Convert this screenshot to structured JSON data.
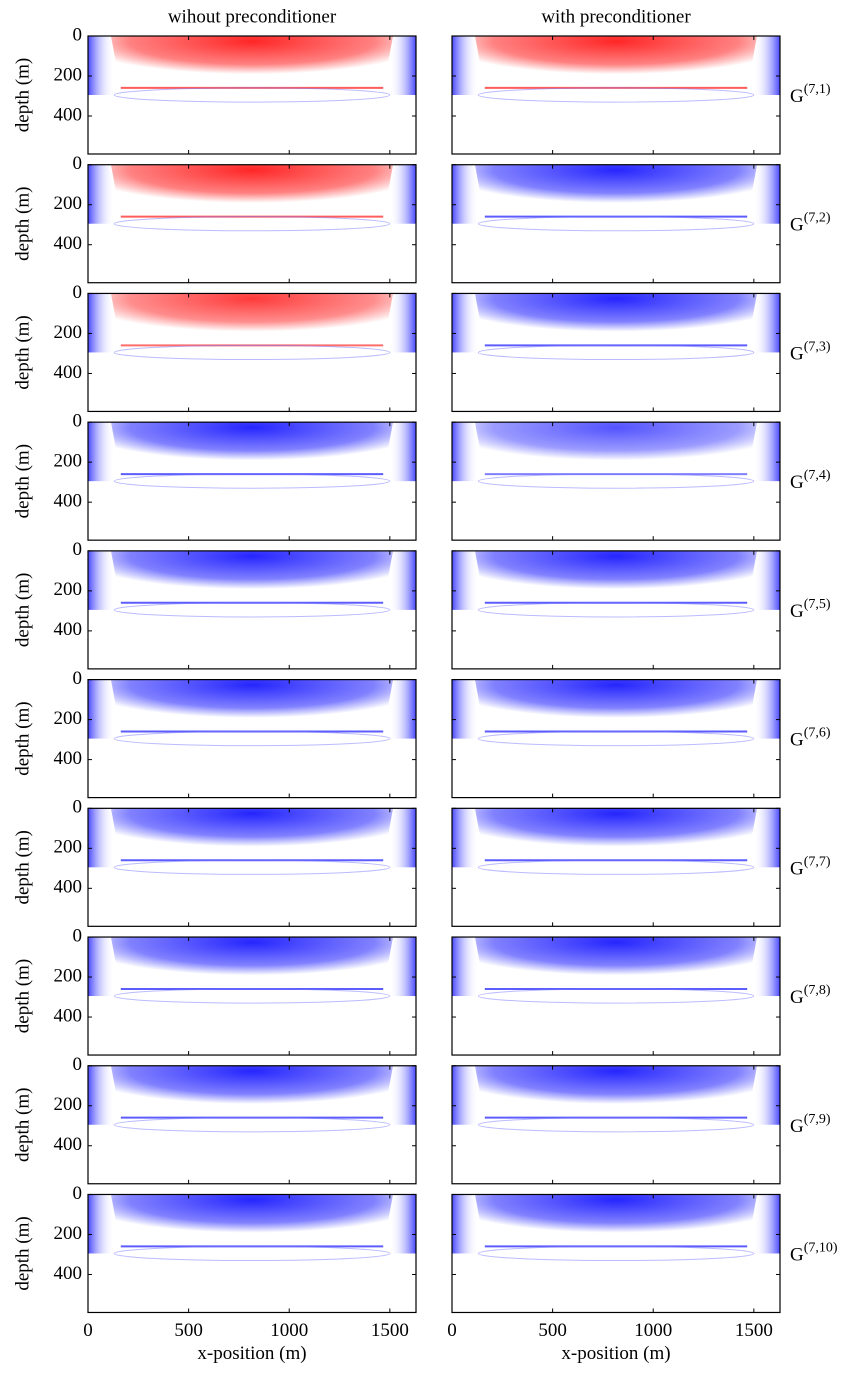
{
  "chart_data": [
    {
      "type": "heatmap",
      "title": "wihout preconditioner",
      "ylabel": "depth (m)",
      "xlim": [
        0,
        1630
      ],
      "ylim": [
        0,
        590
      ],
      "xticks": [
        0,
        500,
        1000,
        1500
      ],
      "yticks": [
        0,
        200,
        400
      ],
      "xtick_labels": false,
      "ytick_labels": true,
      "color": "#ff1a1a"
    },
    {
      "type": "heatmap",
      "title": "with preconditioner",
      "annotation": "G",
      "annotation_superscript": "(7,1)",
      "xlim": [
        0,
        1630
      ],
      "ylim": [
        0,
        590
      ],
      "xticks": [
        0,
        500,
        1000,
        1500
      ],
      "yticks": [
        0,
        200,
        400
      ],
      "xtick_labels": false,
      "ytick_labels": false,
      "color": "#ff1a1a"
    },
    {
      "type": "heatmap",
      "ylabel": "depth (m)",
      "xlim": [
        0,
        1630
      ],
      "ylim": [
        0,
        590
      ],
      "xticks": [
        0,
        500,
        1000,
        1500
      ],
      "yticks": [
        0,
        200,
        400
      ],
      "xtick_labels": false,
      "ytick_labels": true,
      "color": "#ff1a1a"
    },
    {
      "type": "heatmap",
      "annotation": "G",
      "annotation_superscript": "(7,2)",
      "xlim": [
        0,
        1630
      ],
      "ylim": [
        0,
        590
      ],
      "xticks": [
        0,
        500,
        1000,
        1500
      ],
      "yticks": [
        0,
        200,
        400
      ],
      "xtick_labels": false,
      "ytick_labels": false,
      "color": "#1a1aff"
    },
    {
      "type": "heatmap",
      "ylabel": "depth (m)",
      "xlim": [
        0,
        1630
      ],
      "ylim": [
        0,
        590
      ],
      "xticks": [
        0,
        500,
        1000,
        1500
      ],
      "yticks": [
        0,
        200,
        400
      ],
      "xtick_labels": false,
      "ytick_labels": true,
      "color": "#ff3030"
    },
    {
      "type": "heatmap",
      "annotation": "G",
      "annotation_superscript": "(7,3)",
      "xlim": [
        0,
        1630
      ],
      "ylim": [
        0,
        590
      ],
      "xticks": [
        0,
        500,
        1000,
        1500
      ],
      "yticks": [
        0,
        200,
        400
      ],
      "xtick_labels": false,
      "ytick_labels": false,
      "color": "#1a1aff"
    },
    {
      "type": "heatmap",
      "ylabel": "depth (m)",
      "xlim": [
        0,
        1630
      ],
      "ylim": [
        0,
        590
      ],
      "xticks": [
        0,
        500,
        1000,
        1500
      ],
      "yticks": [
        0,
        200,
        400
      ],
      "xtick_labels": false,
      "ytick_labels": true,
      "color": "#1a1aff"
    },
    {
      "type": "heatmap",
      "annotation": "G",
      "annotation_superscript": "(7,4)",
      "xlim": [
        0,
        1630
      ],
      "ylim": [
        0,
        590
      ],
      "xticks": [
        0,
        500,
        1000,
        1500
      ],
      "yticks": [
        0,
        200,
        400
      ],
      "xtick_labels": false,
      "ytick_labels": false,
      "color": "#4a4aff"
    },
    {
      "type": "heatmap",
      "ylabel": "depth (m)",
      "xlim": [
        0,
        1630
      ],
      "ylim": [
        0,
        590
      ],
      "xticks": [
        0,
        500,
        1000,
        1500
      ],
      "yticks": [
        0,
        200,
        400
      ],
      "xtick_labels": false,
      "ytick_labels": true,
      "color": "#1a1aff"
    },
    {
      "type": "heatmap",
      "annotation": "G",
      "annotation_superscript": "(7,5)",
      "xlim": [
        0,
        1630
      ],
      "ylim": [
        0,
        590
      ],
      "xticks": [
        0,
        500,
        1000,
        1500
      ],
      "yticks": [
        0,
        200,
        400
      ],
      "xtick_labels": false,
      "ytick_labels": false,
      "color": "#1a1aff"
    },
    {
      "type": "heatmap",
      "ylabel": "depth (m)",
      "xlim": [
        0,
        1630
      ],
      "ylim": [
        0,
        590
      ],
      "xticks": [
        0,
        500,
        1000,
        1500
      ],
      "yticks": [
        0,
        200,
        400
      ],
      "xtick_labels": false,
      "ytick_labels": true,
      "color": "#1a1aff"
    },
    {
      "type": "heatmap",
      "annotation": "G",
      "annotation_superscript": "(7,6)",
      "xlim": [
        0,
        1630
      ],
      "ylim": [
        0,
        590
      ],
      "xticks": [
        0,
        500,
        1000,
        1500
      ],
      "yticks": [
        0,
        200,
        400
      ],
      "xtick_labels": false,
      "ytick_labels": false,
      "color": "#1a1aff"
    },
    {
      "type": "heatmap",
      "ylabel": "depth (m)",
      "xlim": [
        0,
        1630
      ],
      "ylim": [
        0,
        590
      ],
      "xticks": [
        0,
        500,
        1000,
        1500
      ],
      "yticks": [
        0,
        200,
        400
      ],
      "xtick_labels": false,
      "ytick_labels": true,
      "color": "#1a1aff"
    },
    {
      "type": "heatmap",
      "annotation": "G",
      "annotation_superscript": "(7,7)",
      "xlim": [
        0,
        1630
      ],
      "ylim": [
        0,
        590
      ],
      "xticks": [
        0,
        500,
        1000,
        1500
      ],
      "yticks": [
        0,
        200,
        400
      ],
      "xtick_labels": false,
      "ytick_labels": false,
      "color": "#1a1aff"
    },
    {
      "type": "heatmap",
      "ylabel": "depth (m)",
      "xlim": [
        0,
        1630
      ],
      "ylim": [
        0,
        590
      ],
      "xticks": [
        0,
        500,
        1000,
        1500
      ],
      "yticks": [
        0,
        200,
        400
      ],
      "xtick_labels": false,
      "ytick_labels": true,
      "color": "#1a1aff"
    },
    {
      "type": "heatmap",
      "annotation": "G",
      "annotation_superscript": "(7,8)",
      "xlim": [
        0,
        1630
      ],
      "ylim": [
        0,
        590
      ],
      "xticks": [
        0,
        500,
        1000,
        1500
      ],
      "yticks": [
        0,
        200,
        400
      ],
      "xtick_labels": false,
      "ytick_labels": false,
      "color": "#1a1aff"
    },
    {
      "type": "heatmap",
      "ylabel": "depth (m)",
      "xlim": [
        0,
        1630
      ],
      "ylim": [
        0,
        590
      ],
      "xticks": [
        0,
        500,
        1000,
        1500
      ],
      "yticks": [
        0,
        200,
        400
      ],
      "xtick_labels": false,
      "ytick_labels": true,
      "color": "#1a1aff"
    },
    {
      "type": "heatmap",
      "annotation": "G",
      "annotation_superscript": "(7,9)",
      "xlim": [
        0,
        1630
      ],
      "ylim": [
        0,
        590
      ],
      "xticks": [
        0,
        500,
        1000,
        1500
      ],
      "yticks": [
        0,
        200,
        400
      ],
      "xtick_labels": false,
      "ytick_labels": false,
      "color": "#1a1aff"
    },
    {
      "type": "heatmap",
      "ylabel": "depth (m)",
      "xlabel": "x-position (m)",
      "xlim": [
        0,
        1630
      ],
      "ylim": [
        0,
        590
      ],
      "xticks": [
        0,
        500,
        1000,
        1500
      ],
      "yticks": [
        0,
        200,
        400
      ],
      "xtick_labels": true,
      "ytick_labels": true,
      "color": "#1a1aff"
    },
    {
      "type": "heatmap",
      "xlabel": "x-position (m)",
      "annotation": "G",
      "annotation_superscript": "(7,10)",
      "xlim": [
        0,
        1630
      ],
      "ylim": [
        0,
        590
      ],
      "xticks": [
        0,
        500,
        1000,
        1500
      ],
      "yticks": [
        0,
        200,
        400
      ],
      "xtick_labels": true,
      "ytick_labels": false,
      "color": "#1a1aff"
    }
  ]
}
